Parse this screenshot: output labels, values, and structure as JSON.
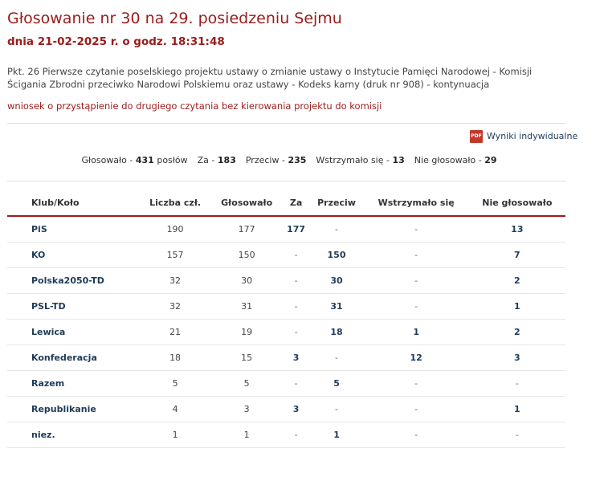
{
  "header": {
    "title": "Głosowanie nr 30 na 29. posiedzeniu Sejmu",
    "date": "dnia 21-02-2025 r. o godz. 18:31:48"
  },
  "description": "Pkt. 26 Pierwsze czytanie poselskiego projektu ustawy o zmianie ustawy o Instytucie Pamięci Narodowej - Komisji Ścigania Zbrodni przeciwko Narodowi Polskiemu oraz ustawy - Kodeks karny (druk nr 908) - kontynuacja",
  "motion": "wniosek o przystąpienie do drugiego czytania bez kierowania projektu do komisji",
  "pdf_icon": "PDF",
  "pdf_link": "Wyniki indywidualne",
  "summary": [
    {
      "label": "Głosowało -",
      "value": 431,
      "unit": "posłów"
    },
    {
      "label": "Za -",
      "value": 183
    },
    {
      "label": "Przeciw -",
      "value": 235
    },
    {
      "label": "Wstrzymało się -",
      "value": 13
    },
    {
      "label": "Nie głosowało -",
      "value": 29
    }
  ],
  "table": {
    "columns": [
      "Klub/Koło",
      "Liczba czł.",
      "Głosowało",
      "Za",
      "Przeciw",
      "Wstrzymało się",
      "Nie głosowało"
    ],
    "rows": [
      [
        "PiS",
        190,
        177,
        177,
        "-",
        "-",
        13
      ],
      [
        "KO",
        157,
        150,
        "-",
        150,
        "-",
        7
      ],
      [
        "Polska2050-TD",
        32,
        30,
        "-",
        30,
        "-",
        2
      ],
      [
        "PSL-TD",
        32,
        31,
        "-",
        31,
        "-",
        1
      ],
      [
        "Lewica",
        21,
        19,
        "-",
        18,
        1,
        2
      ],
      [
        "Konfederacja",
        18,
        15,
        3,
        "-",
        12,
        3
      ],
      [
        "Razem",
        5,
        5,
        "-",
        5,
        "-",
        "-"
      ],
      [
        "Republikanie",
        4,
        3,
        3,
        "-",
        "-",
        1
      ],
      [
        "niez.",
        1,
        1,
        "-",
        1,
        "-",
        "-"
      ]
    ]
  }
}
